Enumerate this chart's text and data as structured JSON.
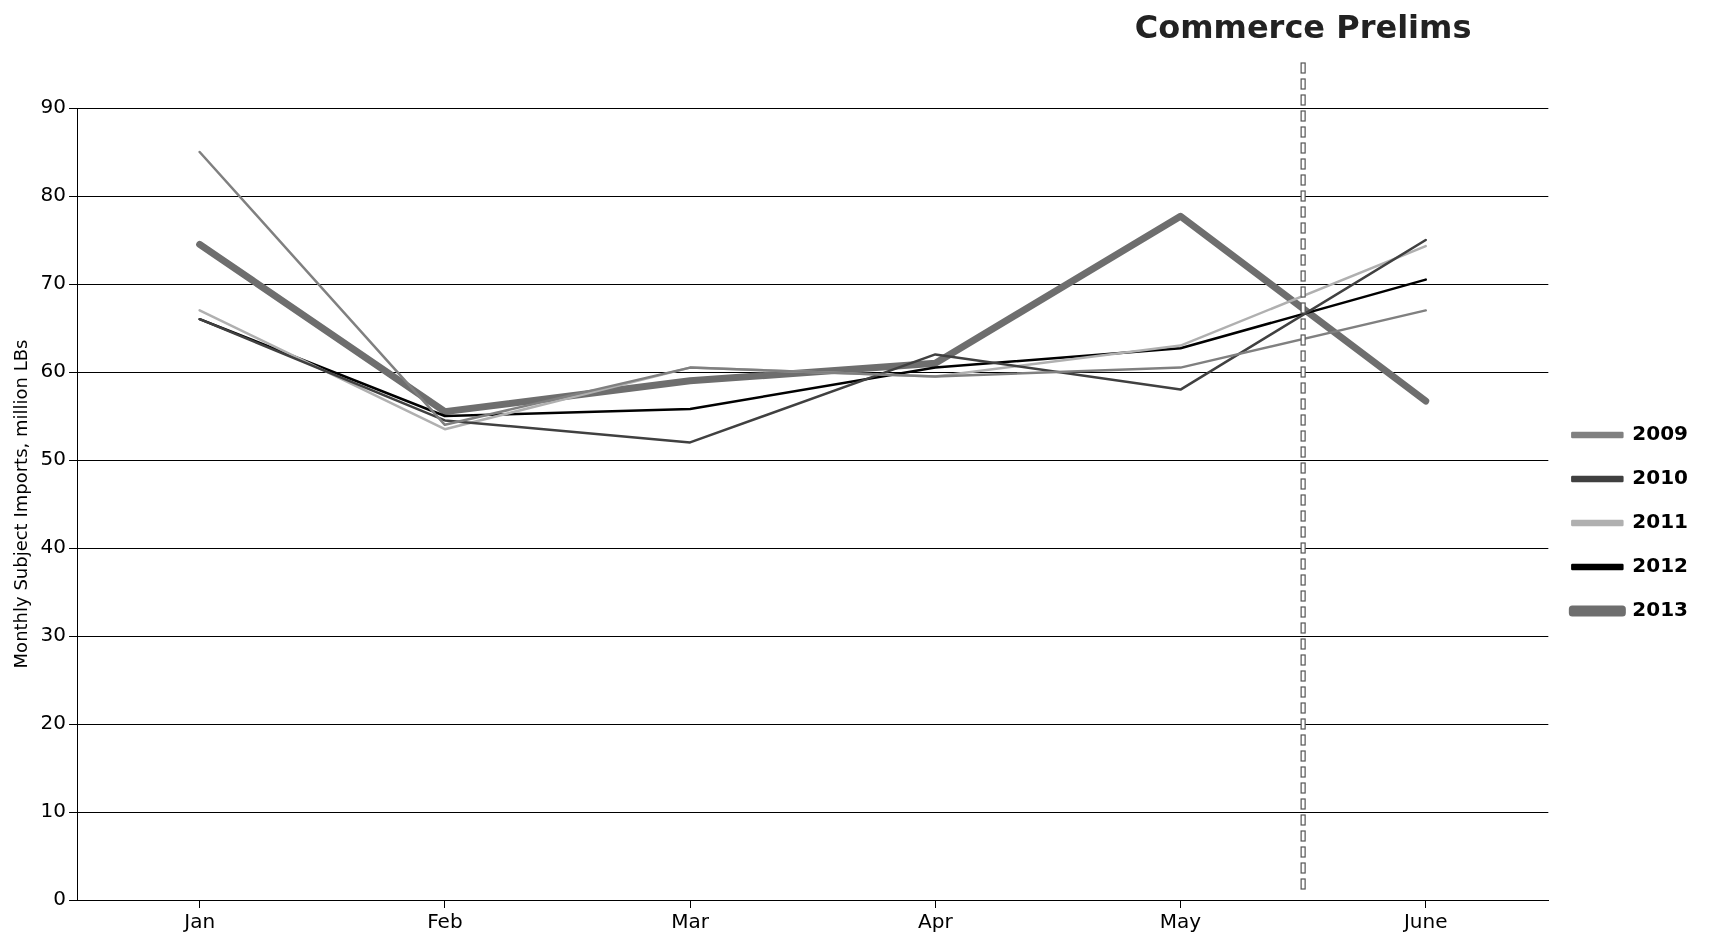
{
  "chart_data": {
    "type": "line",
    "ylabel": "Monthly Subject Imports, million LBs",
    "categories": [
      "Jan",
      "Feb",
      "Mar",
      "Apr",
      "May",
      "June"
    ],
    "series": [
      {
        "name": "2009",
        "color": "#808080",
        "values": [
          85,
          54,
          60.5,
          59.5,
          60.5,
          67
        ]
      },
      {
        "name": "2010",
        "color": "#404040",
        "values": [
          66,
          54.5,
          52,
          62,
          58,
          75
        ]
      },
      {
        "name": "2011",
        "color": "#b0b0b0",
        "values": [
          67,
          53.5,
          60.5,
          59.5,
          63,
          74.3
        ]
      },
      {
        "name": "2012",
        "color": "#000000",
        "values": [
          66,
          55,
          55.8,
          60.5,
          62.7,
          70.5
        ]
      },
      {
        "name": "2013",
        "color": "#6e6e6e",
        "values": [
          74.5,
          55.5,
          59,
          61,
          77.7,
          56.7
        ]
      }
    ],
    "ylim": [
      0,
      90
    ],
    "yticks": [
      0,
      10,
      20,
      30,
      40,
      50,
      60,
      70,
      80,
      90
    ],
    "grid": "y",
    "legend": "right",
    "marker": "none",
    "line_style": "solid",
    "annotations": [
      "Commerce Prelims"
    ]
  }
}
